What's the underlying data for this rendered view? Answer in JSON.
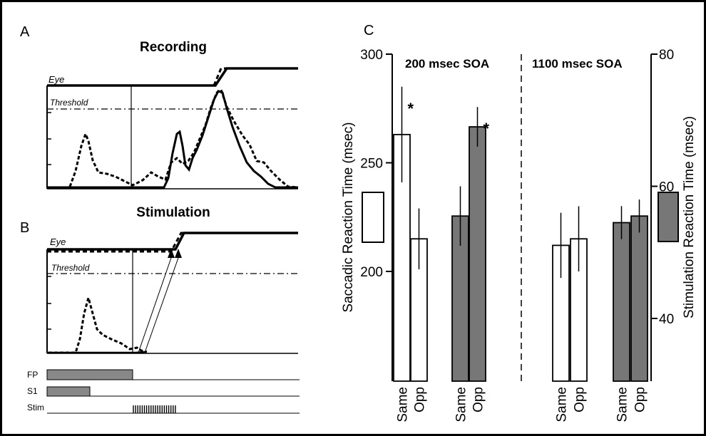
{
  "panels": {
    "a": {
      "letter": "A",
      "title": "Recording",
      "eye_label": "Eye",
      "threshold_label": "Threshold"
    },
    "b": {
      "letter": "B",
      "title": "Stimulation",
      "eye_label": "Eye",
      "threshold_label": "Threshold",
      "timeline_labels": [
        "FP",
        "S1",
        "Stim"
      ]
    },
    "c": {
      "letter": "C"
    }
  },
  "chart_data": {
    "type": "bar",
    "left_axis": {
      "label": "Saccadic Reaction Time (msec)",
      "ticks": [
        200,
        250,
        300
      ],
      "range": [
        170,
        300
      ]
    },
    "right_axis": {
      "label": "Stimulation Reaction Time (msec)",
      "ticks": [
        40,
        60,
        80
      ],
      "range": [
        35,
        80
      ]
    },
    "groups": [
      {
        "label": "200 msec SOA",
        "bars": [
          {
            "category": "Same",
            "axis": "left",
            "value": 263,
            "error": 22,
            "fill": "#ffffff",
            "significant": true
          },
          {
            "category": "Opp",
            "axis": "left",
            "value": 215,
            "error": 14,
            "fill": "#ffffff",
            "significant": false
          },
          {
            "category": "Same",
            "axis": "right",
            "value": 55.5,
            "error": 4.5,
            "fill": "#777777",
            "significant": false
          },
          {
            "category": "Opp",
            "axis": "right",
            "value": 69,
            "error": 3,
            "fill": "#777777",
            "significant": true
          }
        ]
      },
      {
        "label": "1100 msec SOA",
        "bars": [
          {
            "category": "Same",
            "axis": "left",
            "value": 212,
            "error": 15,
            "fill": "#ffffff",
            "significant": false
          },
          {
            "category": "Opp",
            "axis": "left",
            "value": 215,
            "error": 15,
            "fill": "#ffffff",
            "significant": false
          },
          {
            "category": "Same",
            "axis": "right",
            "value": 54.5,
            "error": 2.5,
            "fill": "#777777",
            "significant": false
          },
          {
            "category": "Opp",
            "axis": "right",
            "value": 55.5,
            "error": 2.5,
            "fill": "#777777",
            "significant": false
          }
        ]
      }
    ],
    "significance_marker": "*",
    "legend": [
      {
        "axis": "left",
        "fill": "#ffffff"
      },
      {
        "axis": "right",
        "fill": "#777777"
      }
    ]
  }
}
